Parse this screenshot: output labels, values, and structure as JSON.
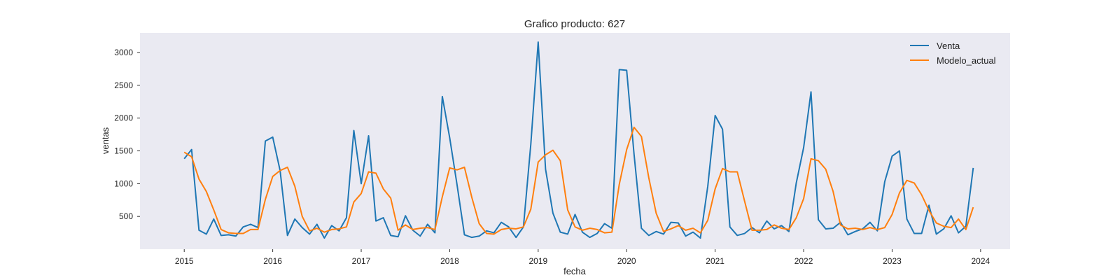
{
  "chart_data": {
    "type": "line",
    "title": "Grafico producto: 627",
    "xlabel": "fecha",
    "ylabel": "ventas",
    "xlim": [
      "2014-07",
      "2024-05"
    ],
    "ylim": [
      0,
      3300
    ],
    "x_ticks": [
      "2015",
      "2016",
      "2017",
      "2018",
      "2019",
      "2020",
      "2021",
      "2022",
      "2023",
      "2024"
    ],
    "y_ticks": [
      500,
      1000,
      1500,
      2000,
      2500,
      3000
    ],
    "grid": false,
    "legend_position": "top-right",
    "x": [
      "2015-01",
      "2015-02",
      "2015-03",
      "2015-04",
      "2015-05",
      "2015-06",
      "2015-07",
      "2015-08",
      "2015-09",
      "2015-10",
      "2015-11",
      "2015-12",
      "2016-01",
      "2016-02",
      "2016-03",
      "2016-04",
      "2016-05",
      "2016-06",
      "2016-07",
      "2016-08",
      "2016-09",
      "2016-10",
      "2016-11",
      "2016-12",
      "2017-01",
      "2017-02",
      "2017-03",
      "2017-04",
      "2017-05",
      "2017-06",
      "2017-07",
      "2017-08",
      "2017-09",
      "2017-10",
      "2017-11",
      "2017-12",
      "2018-01",
      "2018-02",
      "2018-03",
      "2018-04",
      "2018-05",
      "2018-06",
      "2018-07",
      "2018-08",
      "2018-09",
      "2018-10",
      "2018-11",
      "2018-12",
      "2019-01",
      "2019-02",
      "2019-03",
      "2019-04",
      "2019-05",
      "2019-06",
      "2019-07",
      "2019-08",
      "2019-09",
      "2019-10",
      "2019-11",
      "2019-12",
      "2020-01",
      "2020-02",
      "2020-03",
      "2020-04",
      "2020-05",
      "2020-06",
      "2020-07",
      "2020-08",
      "2020-09",
      "2020-10",
      "2020-11",
      "2020-12",
      "2021-01",
      "2021-02",
      "2021-03",
      "2021-04",
      "2021-05",
      "2021-06",
      "2021-07",
      "2021-08",
      "2021-09",
      "2021-10",
      "2021-11",
      "2021-12",
      "2022-01",
      "2022-02",
      "2022-03",
      "2022-04",
      "2022-05",
      "2022-06",
      "2022-07",
      "2022-08",
      "2022-09",
      "2022-10",
      "2022-11",
      "2022-12",
      "2023-01",
      "2023-02",
      "2023-03",
      "2023-04",
      "2023-05",
      "2023-06",
      "2023-07",
      "2023-08",
      "2023-09",
      "2023-10",
      "2023-11",
      "2023-12"
    ],
    "series": [
      {
        "name": "Venta",
        "color": "#1f77b4",
        "values": [
          1380,
          1520,
          290,
          230,
          460,
          210,
          220,
          200,
          340,
          380,
          330,
          1650,
          1710,
          1200,
          210,
          460,
          330,
          230,
          380,
          170,
          360,
          280,
          480,
          1810,
          1000,
          1730,
          430,
          480,
          210,
          190,
          510,
          290,
          200,
          380,
          250,
          2330,
          1700,
          980,
          220,
          180,
          200,
          280,
          250,
          410,
          340,
          180,
          340,
          1600,
          3160,
          1220,
          550,
          260,
          230,
          530,
          260,
          180,
          240,
          390,
          320,
          2740,
          2730,
          1450,
          320,
          210,
          270,
          230,
          410,
          400,
          200,
          260,
          170,
          960,
          2040,
          1830,
          340,
          210,
          240,
          330,
          250,
          430,
          310,
          360,
          270,
          1010,
          1550,
          2400,
          450,
          310,
          320,
          410,
          220,
          270,
          310,
          410,
          280,
          1030,
          1420,
          1500,
          460,
          240,
          240,
          670,
          230,
          310,
          510,
          250,
          350,
          1240
        ]
      },
      {
        "name": "Modelo_actual",
        "color": "#ff7f0e",
        "values": [
          1480,
          1410,
          1070,
          880,
          600,
          300,
          250,
          240,
          240,
          300,
          300,
          760,
          1110,
          1200,
          1250,
          960,
          500,
          280,
          320,
          260,
          300,
          310,
          340,
          720,
          850,
          1180,
          1160,
          920,
          780,
          290,
          370,
          300,
          320,
          330,
          300,
          800,
          1240,
          1210,
          1250,
          790,
          390,
          240,
          230,
          300,
          320,
          310,
          340,
          610,
          1330,
          1440,
          1510,
          1350,
          600,
          340,
          290,
          320,
          300,
          250,
          260,
          990,
          1520,
          1860,
          1720,
          1090,
          550,
          270,
          310,
          360,
          290,
          320,
          250,
          440,
          920,
          1230,
          1180,
          1180,
          730,
          290,
          290,
          300,
          370,
          320,
          300,
          480,
          770,
          1380,
          1350,
          1220,
          880,
          370,
          310,
          320,
          300,
          330,
          300,
          330,
          530,
          860,
          1050,
          1010,
          830,
          590,
          400,
          350,
          330,
          460,
          300,
          640
        ]
      }
    ]
  }
}
